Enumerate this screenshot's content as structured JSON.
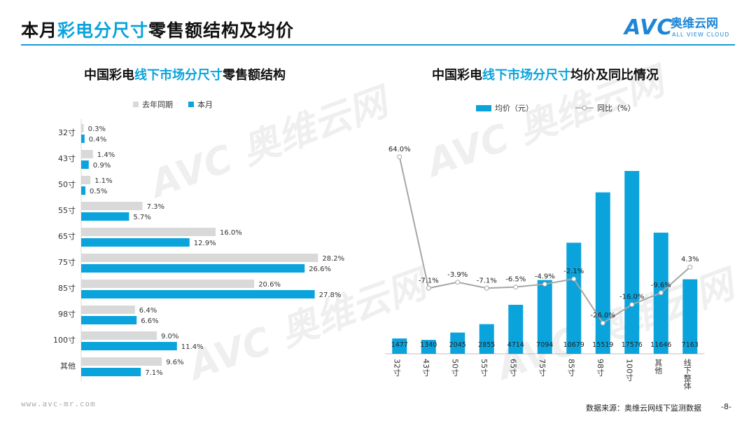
{
  "header": {
    "title_prefix": "本月",
    "title_highlight": "彩电分尺寸",
    "title_suffix": "零售额结构及均价",
    "logo_mark": "AVC",
    "logo_cn": "奥维云网",
    "logo_en": "ALL VIEW CLOUD"
  },
  "left_chart": {
    "title_prefix": "中国彩电",
    "title_highlight": "线下市场分尺寸",
    "title_suffix": "零售额结构"
  },
  "right_chart": {
    "title_prefix": "中国彩电",
    "title_highlight": "线下市场分尺寸",
    "title_suffix": "均价及同比情况"
  },
  "chart_data": [
    {
      "type": "bar",
      "orientation": "horizontal",
      "categories": [
        "32寸",
        "43寸",
        "50寸",
        "55寸",
        "65寸",
        "75寸",
        "85寸",
        "98寸",
        "100寸",
        "其他"
      ],
      "series": [
        {
          "name": "去年同期",
          "color": "#d9d9d9",
          "values": [
            0.3,
            1.4,
            1.1,
            7.3,
            16.0,
            28.2,
            20.6,
            6.4,
            9.0,
            9.6
          ],
          "labels": [
            "0.3%",
            "1.4%",
            "1.1%",
            "7.3%",
            "16.0%",
            "28.2%",
            "20.6%",
            "6.4%",
            "9.0%",
            "9.6%"
          ]
        },
        {
          "name": "本月",
          "color": "#0aa3dc",
          "values": [
            0.4,
            0.9,
            0.5,
            5.7,
            12.9,
            26.6,
            27.8,
            6.6,
            11.4,
            7.1
          ],
          "labels": [
            "0.4%",
            "0.9%",
            "0.5%",
            "5.7%",
            "12.9%",
            "26.6%",
            "27.8%",
            "6.6%",
            "11.4%",
            "7.1%"
          ]
        }
      ],
      "xlim": [
        0,
        30
      ]
    },
    {
      "type": "bar",
      "categories": [
        "32寸",
        "43寸",
        "50寸",
        "55寸",
        "65寸",
        "75寸",
        "85寸",
        "98寸",
        "100寸",
        "其他",
        "线下整体"
      ],
      "series": [
        {
          "name": "均价（元）",
          "type": "bar",
          "color": "#0aa3dc",
          "values": [
            1477,
            1340,
            2045,
            2855,
            4714,
            7094,
            10679,
            15519,
            17576,
            11646,
            7163
          ],
          "labels": [
            "1477",
            "1340",
            "2045",
            "2855",
            "4714",
            "7094",
            "10679",
            "15519",
            "17576",
            "11646",
            "7163"
          ]
        },
        {
          "name": "同比（%）",
          "type": "line",
          "color": "#a6a6a6",
          "values": [
            64.0,
            -7.1,
            -3.9,
            -7.1,
            -6.5,
            -4.9,
            -2.1,
            -26.0,
            -16.0,
            -9.6,
            4.3
          ],
          "labels": [
            "64.0%",
            "-7.1%",
            "-3.9%",
            "-7.1%",
            "-6.5%",
            "-4.9%",
            "-2.1%",
            "-26.0%",
            "-16.0%",
            "-9.6%",
            "4.3%"
          ]
        }
      ],
      "ylim_bar": [
        0,
        20000
      ],
      "ylim_line": [
        -40,
        70
      ]
    }
  ],
  "footer": {
    "website": "www.avc-mr.com",
    "source": "数据来源：奥维云网线下监测数据",
    "page": "-8-"
  }
}
